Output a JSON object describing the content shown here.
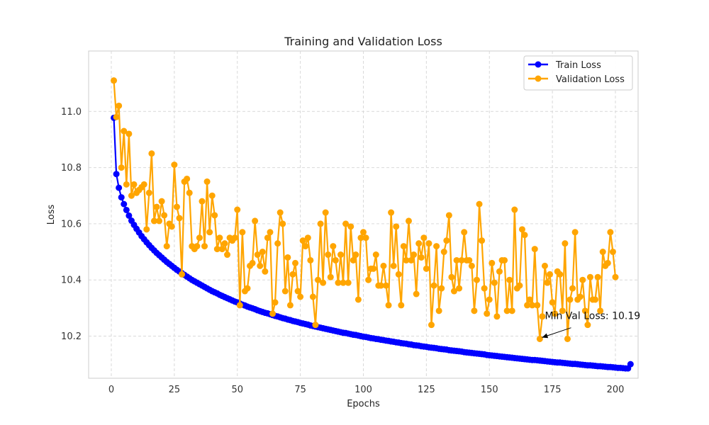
{
  "chart_data": {
    "type": "line",
    "title": "Training and Validation Loss",
    "xlabel": "Epochs",
    "ylabel": "Loss",
    "xlim": [
      -9,
      209
    ],
    "ylim": [
      10.05,
      11.215
    ],
    "xticks": [
      0,
      25,
      50,
      75,
      100,
      125,
      150,
      175,
      200
    ],
    "yticks": [
      10.2,
      10.4,
      10.6,
      10.8,
      11.0
    ],
    "ytick_labels": [
      "10.2",
      "10.4",
      "10.6",
      "10.8",
      "11.0"
    ],
    "grid": true,
    "legend_position": "top-right",
    "series": [
      {
        "name": "Train Loss",
        "color": "#0000ff",
        "x_start": 1,
        "values": [
          10.977,
          10.777,
          10.728,
          10.694,
          10.67,
          10.649,
          10.629,
          10.611,
          10.596,
          10.582,
          10.569,
          10.556,
          10.545,
          10.534,
          10.524,
          10.514,
          10.505,
          10.496,
          10.488,
          10.48,
          10.472,
          10.464,
          10.457,
          10.45,
          10.443,
          10.436,
          10.43,
          10.424,
          10.418,
          10.412,
          10.406,
          10.4,
          10.395,
          10.39,
          10.385,
          10.38,
          10.375,
          10.37,
          10.365,
          10.36,
          10.356,
          10.352,
          10.347,
          10.343,
          10.339,
          10.335,
          10.331,
          10.327,
          10.323,
          10.32,
          10.316,
          10.312,
          10.309,
          10.305,
          10.302,
          10.299,
          10.296,
          10.292,
          10.289,
          10.286,
          10.283,
          10.281,
          10.278,
          10.275,
          10.272,
          10.27,
          10.267,
          10.264,
          10.262,
          10.259,
          10.257,
          10.254,
          10.252,
          10.25,
          10.247,
          10.245,
          10.243,
          10.241,
          10.238,
          10.236,
          10.234,
          10.232,
          10.23,
          10.228,
          10.226,
          10.224,
          10.222,
          10.22,
          10.218,
          10.216,
          10.214,
          10.212,
          10.211,
          10.209,
          10.207,
          10.205,
          10.204,
          10.202,
          10.2,
          10.198,
          10.197,
          10.195,
          10.193,
          10.192,
          10.19,
          10.189,
          10.187,
          10.186,
          10.184,
          10.183,
          10.181,
          10.18,
          10.178,
          10.177,
          10.175,
          10.174,
          10.173,
          10.171,
          10.17,
          10.168,
          10.167,
          10.166,
          10.164,
          10.163,
          10.162,
          10.16,
          10.159,
          10.158,
          10.157,
          10.155,
          10.154,
          10.153,
          10.152,
          10.15,
          10.149,
          10.148,
          10.147,
          10.146,
          10.145,
          10.143,
          10.142,
          10.141,
          10.14,
          10.139,
          10.138,
          10.137,
          10.136,
          10.135,
          10.133,
          10.132,
          10.131,
          10.13,
          10.129,
          10.128,
          10.127,
          10.126,
          10.125,
          10.124,
          10.123,
          10.122,
          10.121,
          10.12,
          10.119,
          10.118,
          10.117,
          10.116,
          10.115,
          10.115,
          10.114,
          10.113,
          10.112,
          10.111,
          10.11,
          10.109,
          10.108,
          10.107,
          10.106,
          10.106,
          10.105,
          10.104,
          10.103,
          10.102,
          10.101,
          10.101,
          10.1,
          10.099,
          10.098,
          10.097,
          10.096,
          10.096,
          10.095,
          10.094,
          10.093,
          10.093,
          10.092,
          10.091,
          10.09,
          10.09,
          10.089,
          10.088,
          10.087,
          10.087,
          10.086,
          10.085,
          10.085,
          10.1
        ]
      },
      {
        "name": "Validation Loss",
        "color": "#ffa500",
        "x_start": 1,
        "values": [
          11.11,
          10.98,
          11.02,
          10.8,
          10.93,
          10.74,
          10.92,
          10.7,
          10.74,
          10.71,
          10.72,
          10.73,
          10.74,
          10.58,
          10.71,
          10.85,
          10.61,
          10.66,
          10.61,
          10.68,
          10.63,
          10.52,
          10.6,
          10.59,
          10.81,
          10.66,
          10.62,
          10.42,
          10.75,
          10.76,
          10.71,
          10.52,
          10.51,
          10.52,
          10.55,
          10.68,
          10.52,
          10.75,
          10.57,
          10.7,
          10.63,
          10.51,
          10.55,
          10.51,
          10.53,
          10.49,
          10.55,
          10.54,
          10.55,
          10.65,
          10.31,
          10.57,
          10.36,
          10.37,
          10.45,
          10.46,
          10.61,
          10.49,
          10.45,
          10.5,
          10.43,
          10.55,
          10.57,
          10.28,
          10.32,
          10.53,
          10.64,
          10.6,
          10.36,
          10.48,
          10.31,
          10.42,
          10.46,
          10.36,
          10.34,
          10.54,
          10.52,
          10.55,
          10.47,
          10.34,
          10.24,
          10.4,
          10.6,
          10.39,
          10.64,
          10.49,
          10.41,
          10.52,
          10.47,
          10.39,
          10.49,
          10.39,
          10.6,
          10.39,
          10.59,
          10.47,
          10.49,
          10.33,
          10.55,
          10.57,
          10.55,
          10.4,
          10.44,
          10.44,
          10.49,
          10.38,
          10.38,
          10.45,
          10.38,
          10.31,
          10.64,
          10.45,
          10.59,
          10.42,
          10.31,
          10.52,
          10.47,
          10.61,
          10.47,
          10.49,
          10.35,
          10.53,
          10.48,
          10.55,
          10.44,
          10.53,
          10.24,
          10.38,
          10.52,
          10.29,
          10.37,
          10.5,
          10.54,
          10.63,
          10.41,
          10.36,
          10.47,
          10.37,
          10.47,
          10.57,
          10.47,
          10.47,
          10.45,
          10.29,
          10.4,
          10.67,
          10.54,
          10.37,
          10.28,
          10.33,
          10.46,
          10.39,
          10.27,
          10.43,
          10.47,
          10.47,
          10.29,
          10.4,
          10.29,
          10.65,
          10.37,
          10.38,
          10.58,
          10.56,
          10.31,
          10.33,
          10.31,
          10.51,
          10.31,
          10.19,
          10.27,
          10.45,
          10.39,
          10.42,
          10.32,
          10.28,
          10.43,
          10.42,
          10.29,
          10.53,
          10.19,
          10.33,
          10.37,
          10.57,
          10.33,
          10.34,
          10.4,
          10.29,
          10.24,
          10.41,
          10.33,
          10.33,
          10.41,
          10.29,
          10.5,
          10.45,
          10.46,
          10.57,
          10.5,
          10.41
        ]
      }
    ],
    "annotation": {
      "text": "Min Val Loss: 10.19",
      "x": 170,
      "y": 10.19,
      "text_x": 172,
      "text_y": 10.24
    }
  }
}
